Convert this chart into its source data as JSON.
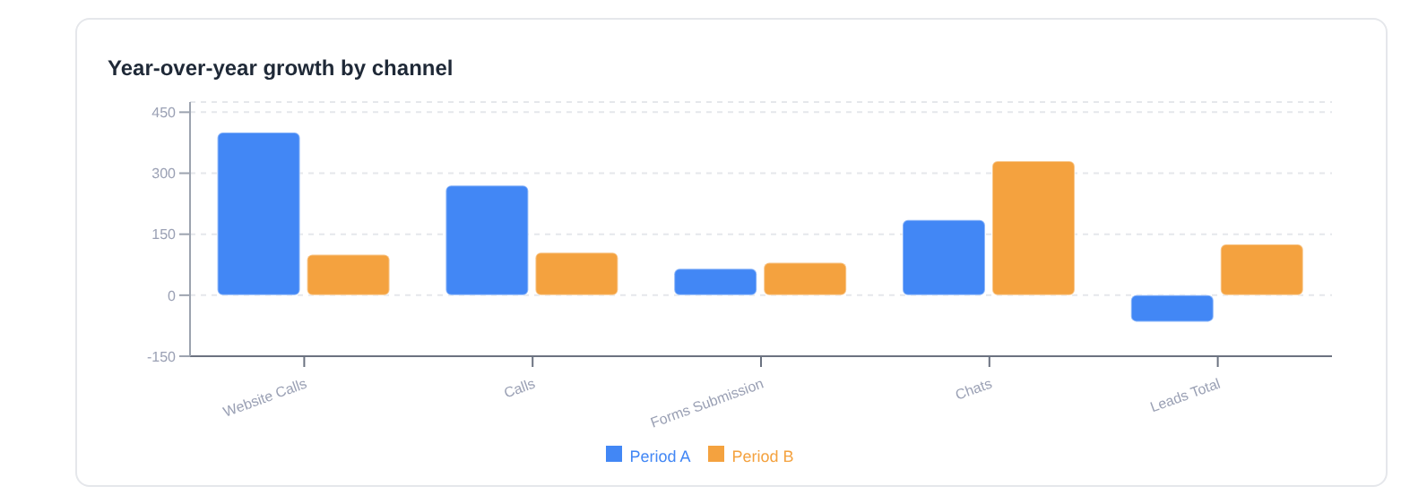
{
  "chart_data": {
    "type": "bar",
    "title": "Year-over-year growth by channel",
    "categories": [
      "Website Calls",
      "Calls",
      "Forms Submission",
      "Chats",
      "Leads Total"
    ],
    "series": [
      {
        "name": "Period A",
        "color": "#4287f5",
        "values": [
          400,
          270,
          65,
          185,
          -65
        ]
      },
      {
        "name": "Period B",
        "color": "#f4a23f",
        "values": [
          100,
          105,
          80,
          330,
          125
        ]
      }
    ],
    "ylim": [
      -150,
      475
    ],
    "yticks": [
      -150,
      0,
      150,
      300,
      450
    ],
    "grid": "y",
    "legend": "bottom"
  }
}
